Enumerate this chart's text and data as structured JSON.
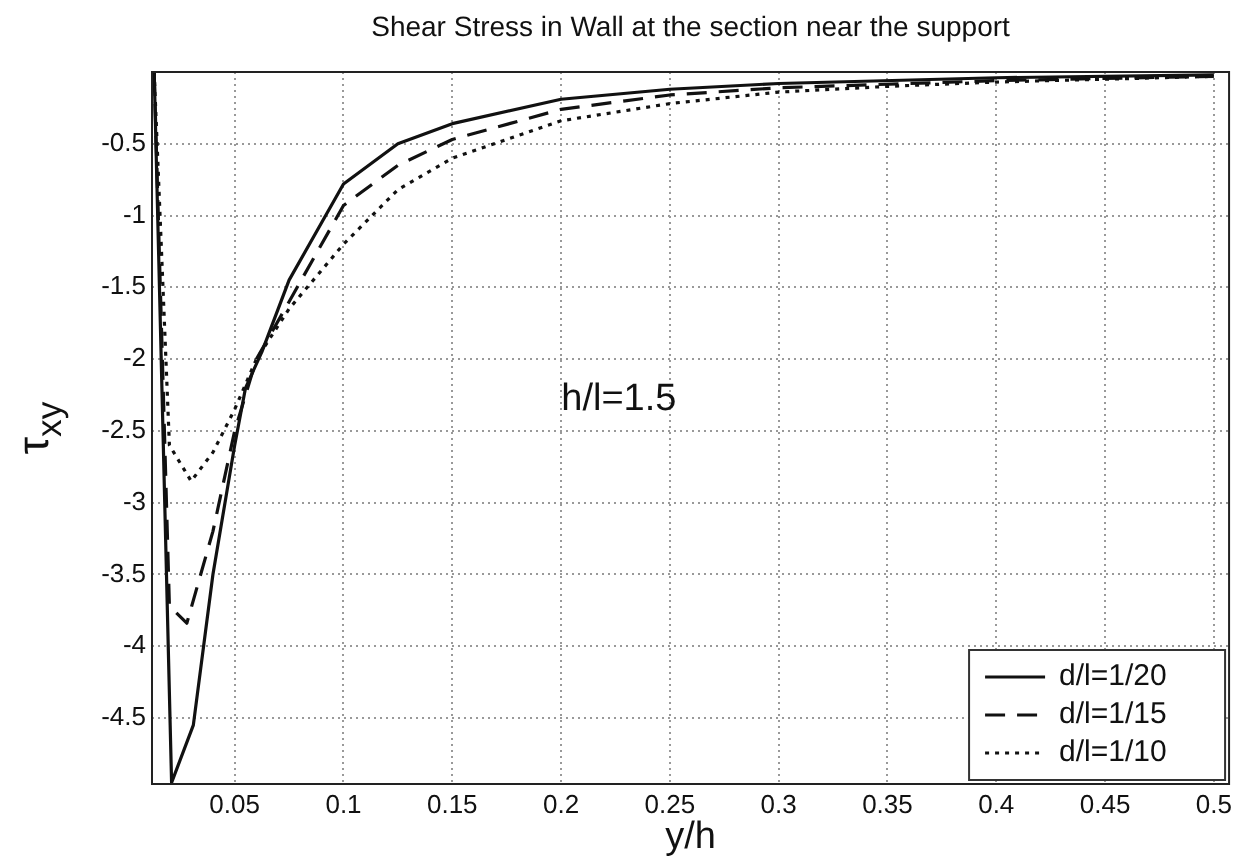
{
  "chart_data": {
    "type": "line",
    "title": "Shear Stress in Wall at the section near the support",
    "xlabel": "y/h",
    "ylabel": "τ$_{xy}$",
    "annotations": [
      "h/l=1.5"
    ],
    "xlim": [
      0.012,
      0.507
    ],
    "ylim": [
      -4.96,
      0
    ],
    "xticks": [
      0.05,
      0.1,
      0.15,
      0.2,
      0.25,
      0.3,
      0.35,
      0.4,
      0.45,
      0.5
    ],
    "yticks": [
      -0.5,
      -1,
      -1.5,
      -2,
      -2.5,
      -3,
      -3.5,
      -4,
      -4.5
    ],
    "grid": true,
    "legend": "bottom right",
    "marker": "none",
    "series": [
      {
        "name": "d/l=1/20",
        "color": "#111111",
        "line_style": "solid",
        "x": [
          0.013,
          0.021,
          0.031,
          0.04,
          0.05,
          0.055,
          0.0625,
          0.075,
          0.1,
          0.125,
          0.15,
          0.2,
          0.25,
          0.3,
          0.4,
          0.5
        ],
        "values": [
          0,
          -4.95,
          -4.55,
          -3.5,
          -2.6,
          -2.2,
          -1.95,
          -1.45,
          -0.78,
          -0.5,
          -0.36,
          -0.19,
          -0.12,
          -0.08,
          -0.04,
          -0.02
        ]
      },
      {
        "name": "d/l=1/15",
        "color": "#111111",
        "line_style": "dashed",
        "x": [
          0.013,
          0.02,
          0.028,
          0.04,
          0.05,
          0.06,
          0.075,
          0.1,
          0.125,
          0.15,
          0.2,
          0.25,
          0.3,
          0.4,
          0.5
        ],
        "values": [
          0,
          -3.72,
          -3.84,
          -3.2,
          -2.5,
          -2.0,
          -1.6,
          -0.93,
          -0.65,
          -0.47,
          -0.26,
          -0.16,
          -0.11,
          -0.06,
          -0.03
        ]
      },
      {
        "name": "d/l=1/10",
        "color": "#111111",
        "line_style": "dotted",
        "x": [
          0.013,
          0.02,
          0.03,
          0.04,
          0.05,
          0.06,
          0.075,
          0.1,
          0.125,
          0.15,
          0.2,
          0.25,
          0.3,
          0.35,
          0.4,
          0.5
        ],
        "values": [
          0,
          -2.6,
          -2.85,
          -2.65,
          -2.35,
          -2.0,
          -1.65,
          -1.2,
          -0.82,
          -0.6,
          -0.34,
          -0.22,
          -0.14,
          -0.1,
          -0.07,
          -0.03
        ]
      }
    ]
  }
}
